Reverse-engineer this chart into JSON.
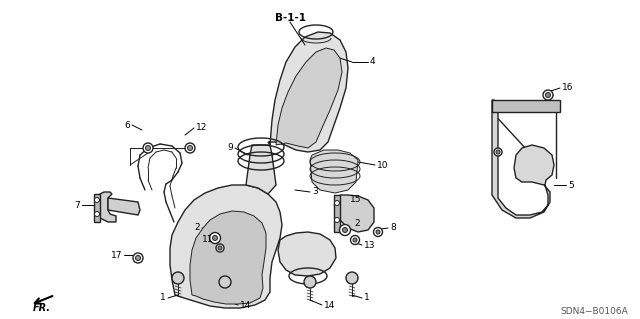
{
  "bg_color": "#ffffff",
  "diagram_code": "SDN4−B0106A",
  "part_label": "B-1-1",
  "gray_fill": "#d8d8d8",
  "gray_edge": "#555555",
  "dark_edge": "#222222",
  "label_color": "#000000",
  "label_fs": 6.5,
  "note_fs": 6.0,
  "figsize": [
    6.4,
    3.19
  ],
  "dpi": 100,
  "xlim": [
    0,
    640
  ],
  "ylim": [
    0,
    319
  ]
}
